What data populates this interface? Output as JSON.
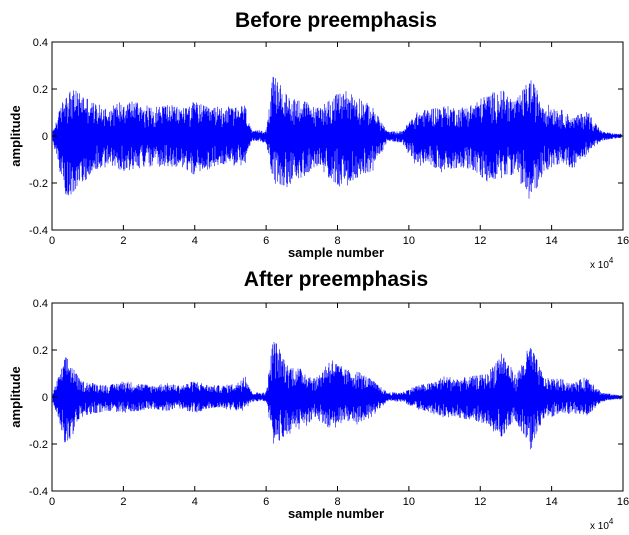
{
  "chart_data": [
    {
      "type": "line",
      "title": "Before preemphasis",
      "xlabel": "sample number",
      "ylabel": "amplitude",
      "x_scale_label": {
        "prefix": "x 10",
        "exponent": "4"
      },
      "xlim": [
        0,
        16
      ],
      "ylim": [
        -0.4,
        0.4
      ],
      "x_ticks": [
        "0",
        "2",
        "4",
        "6",
        "8",
        "10",
        "12",
        "14",
        "16"
      ],
      "y_ticks": [
        "-0.4",
        "-0.2",
        "0",
        "0.2",
        "0.4"
      ],
      "grid": false,
      "legend": "none",
      "color": "#0000ff",
      "series": [
        {
          "x": [
            0.0,
            0.4,
            0.8,
            1.2,
            1.6,
            2.0,
            2.4,
            2.8,
            3.2,
            3.6,
            4.0,
            4.4,
            4.8,
            5.2,
            5.4,
            5.6,
            6.0,
            6.2,
            6.6,
            7.0,
            7.4,
            7.8,
            8.2,
            8.6,
            9.0,
            9.4,
            9.8,
            10.2,
            10.6,
            11.0,
            11.4,
            11.8,
            12.2,
            12.6,
            13.0,
            13.4,
            13.8,
            14.2,
            14.6,
            15.0,
            15.4,
            15.8,
            16.0
          ],
          "ymax": [
            0.01,
            0.2,
            0.19,
            0.14,
            0.12,
            0.16,
            0.15,
            0.12,
            0.14,
            0.12,
            0.15,
            0.12,
            0.13,
            0.12,
            0.14,
            0.02,
            0.03,
            0.27,
            0.17,
            0.16,
            0.12,
            0.16,
            0.2,
            0.17,
            0.12,
            0.02,
            0.02,
            0.1,
            0.12,
            0.13,
            0.12,
            0.14,
            0.18,
            0.2,
            0.15,
            0.25,
            0.14,
            0.12,
            0.08,
            0.11,
            0.02,
            0.01,
            0.01
          ],
          "ymin": [
            -0.01,
            -0.27,
            -0.21,
            -0.15,
            -0.13,
            -0.15,
            -0.14,
            -0.13,
            -0.14,
            -0.13,
            -0.17,
            -0.14,
            -0.12,
            -0.13,
            -0.13,
            -0.02,
            -0.03,
            -0.2,
            -0.22,
            -0.18,
            -0.13,
            -0.19,
            -0.23,
            -0.17,
            -0.15,
            -0.02,
            -0.03,
            -0.13,
            -0.12,
            -0.17,
            -0.13,
            -0.15,
            -0.2,
            -0.18,
            -0.16,
            -0.29,
            -0.15,
            -0.12,
            -0.14,
            -0.08,
            -0.02,
            -0.01,
            -0.01
          ]
        }
      ]
    },
    {
      "type": "line",
      "title": "After preemphasis",
      "xlabel": "sample number",
      "ylabel": "amplitude",
      "x_scale_label": {
        "prefix": "x 10",
        "exponent": "4"
      },
      "xlim": [
        0,
        16
      ],
      "ylim": [
        -0.4,
        0.4
      ],
      "x_ticks": [
        "0",
        "2",
        "4",
        "6",
        "8",
        "10",
        "12",
        "14",
        "16"
      ],
      "y_ticks": [
        "-0.4",
        "-0.2",
        "0",
        "0.2",
        "0.4"
      ],
      "grid": false,
      "legend": "none",
      "color": "#0000ff",
      "series": [
        {
          "x": [
            0.0,
            0.4,
            0.8,
            1.2,
            1.6,
            2.0,
            2.4,
            2.8,
            3.2,
            3.6,
            4.0,
            4.4,
            4.8,
            5.2,
            5.4,
            5.6,
            6.0,
            6.2,
            6.6,
            7.0,
            7.4,
            7.8,
            8.2,
            8.6,
            9.0,
            9.4,
            9.8,
            10.2,
            10.6,
            11.0,
            11.4,
            11.8,
            12.2,
            12.6,
            13.0,
            13.4,
            13.8,
            14.2,
            14.6,
            15.0,
            15.4,
            15.8,
            16.0
          ],
          "ymax": [
            0.01,
            0.18,
            0.07,
            0.06,
            0.05,
            0.07,
            0.06,
            0.05,
            0.06,
            0.05,
            0.07,
            0.05,
            0.05,
            0.06,
            0.11,
            0.02,
            0.02,
            0.26,
            0.14,
            0.12,
            0.08,
            0.17,
            0.12,
            0.11,
            0.07,
            0.02,
            0.02,
            0.05,
            0.06,
            0.09,
            0.08,
            0.09,
            0.1,
            0.2,
            0.09,
            0.23,
            0.08,
            0.08,
            0.06,
            0.09,
            0.02,
            0.01,
            0.01
          ],
          "ymin": [
            -0.01,
            -0.22,
            -0.09,
            -0.07,
            -0.06,
            -0.07,
            -0.06,
            -0.05,
            -0.06,
            -0.05,
            -0.07,
            -0.05,
            -0.05,
            -0.06,
            -0.06,
            -0.02,
            -0.02,
            -0.21,
            -0.16,
            -0.14,
            -0.09,
            -0.15,
            -0.1,
            -0.12,
            -0.08,
            -0.02,
            -0.02,
            -0.05,
            -0.07,
            -0.09,
            -0.09,
            -0.1,
            -0.13,
            -0.17,
            -0.1,
            -0.23,
            -0.09,
            -0.08,
            -0.07,
            -0.08,
            -0.02,
            -0.01,
            -0.01
          ]
        }
      ]
    }
  ]
}
